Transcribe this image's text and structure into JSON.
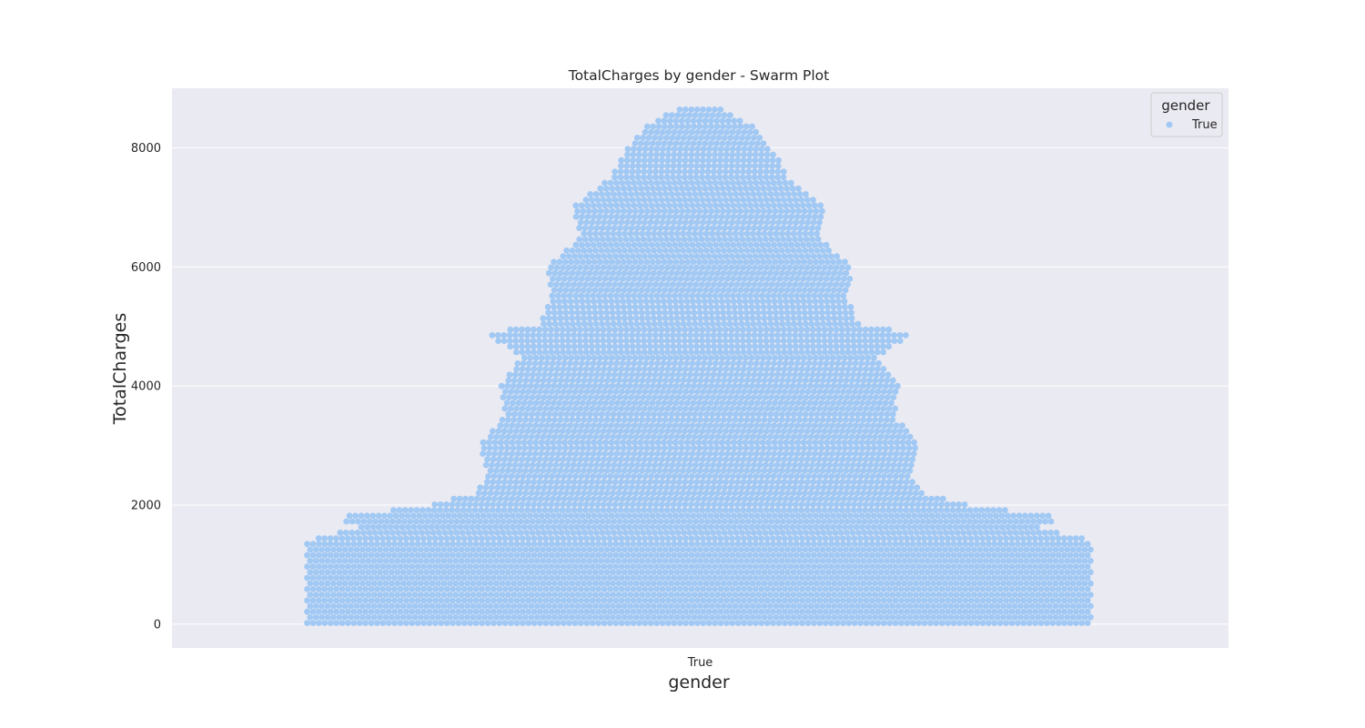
{
  "chart_data": {
    "type": "scatter",
    "title": "TotalCharges by gender - Swarm Plot",
    "xlabel": "gender",
    "ylabel": "TotalCharges",
    "categories": [
      "True"
    ],
    "ylim": [
      -400,
      9000
    ],
    "yticks": [
      0,
      2000,
      4000,
      6000,
      8000
    ],
    "grid": true,
    "legend": {
      "title": "gender",
      "placement": "top-right",
      "entries": [
        "True"
      ]
    },
    "series": [
      {
        "name": "True",
        "color": "#a1c9f4"
      }
    ],
    "distribution_profile": {
      "description": "approx. max horizontal spread of swarm (fraction of category width) per TotalCharges level",
      "y": [
        0,
        200,
        400,
        600,
        800,
        1000,
        1200,
        1400,
        1500,
        1600,
        1800,
        1900,
        2000,
        2200,
        2500,
        3000,
        3500,
        4000,
        4500,
        4900,
        5000,
        5500,
        6000,
        6500,
        7000,
        7500,
        8000,
        8400,
        8700
      ],
      "spread": [
        0.93,
        0.93,
        0.93,
        0.93,
        0.93,
        0.93,
        0.93,
        0.93,
        0.88,
        0.8,
        0.86,
        0.74,
        0.64,
        0.53,
        0.5,
        0.52,
        0.46,
        0.47,
        0.42,
        0.51,
        0.38,
        0.35,
        0.36,
        0.28,
        0.3,
        0.21,
        0.17,
        0.12,
        0.04
      ]
    },
    "point_count_estimate": 7000,
    "ymax_observed": 8700,
    "ymin_observed": 18.8
  },
  "colors": {
    "plot_background": "#eaeaf2",
    "grid": "#ffffff",
    "point": "#a1c9f4",
    "text": "#262626"
  }
}
